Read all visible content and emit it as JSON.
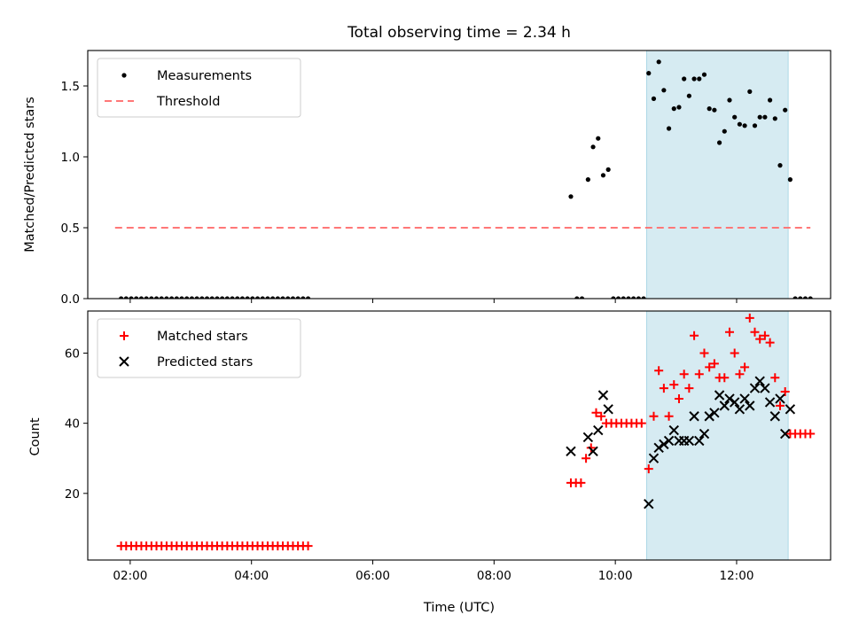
{
  "colors": {
    "measurement": "#000000",
    "threshold": "#ff7777",
    "matched": "#ff0000",
    "predicted": "#000000",
    "span": "#add8e6"
  },
  "chart_data": [
    {
      "type": "scatter",
      "title": "Total observing time = 2.34 h",
      "xlabel": "",
      "ylabel": "Matched/Predicted stars",
      "xlim": [
        "01:18",
        "13:33"
      ],
      "ylim": [
        0,
        1.75
      ],
      "yticks": [
        0.0,
        0.5,
        1.0,
        1.5
      ],
      "ytick_labels": [
        "0.0",
        "0.5",
        "1.0",
        "1.5"
      ],
      "xticks": [
        "02:00",
        "04:00",
        "06:00",
        "08:00",
        "10:00",
        "12:00"
      ],
      "highlight_span": [
        "10:31",
        "12:51"
      ],
      "legend_position": "upper-left",
      "series": [
        {
          "name": "Measurements",
          "kind": "points",
          "color": "#000000",
          "points": [
            [
              "01:51",
              0
            ],
            [
              "01:56",
              0
            ],
            [
              "02:01",
              0
            ],
            [
              "02:06",
              0
            ],
            [
              "02:11",
              0
            ],
            [
              "02:16",
              0
            ],
            [
              "02:21",
              0
            ],
            [
              "02:26",
              0
            ],
            [
              "02:31",
              0
            ],
            [
              "02:36",
              0
            ],
            [
              "02:41",
              0
            ],
            [
              "02:46",
              0
            ],
            [
              "02:51",
              0
            ],
            [
              "02:56",
              0
            ],
            [
              "03:01",
              0
            ],
            [
              "03:06",
              0
            ],
            [
              "03:11",
              0
            ],
            [
              "03:16",
              0
            ],
            [
              "03:21",
              0
            ],
            [
              "03:26",
              0
            ],
            [
              "03:31",
              0
            ],
            [
              "03:36",
              0
            ],
            [
              "03:41",
              0
            ],
            [
              "03:46",
              0
            ],
            [
              "03:51",
              0
            ],
            [
              "03:56",
              0
            ],
            [
              "04:01",
              0
            ],
            [
              "04:06",
              0
            ],
            [
              "04:11",
              0
            ],
            [
              "04:16",
              0
            ],
            [
              "04:21",
              0
            ],
            [
              "04:26",
              0
            ],
            [
              "04:31",
              0
            ],
            [
              "04:36",
              0
            ],
            [
              "04:41",
              0
            ],
            [
              "04:46",
              0
            ],
            [
              "04:51",
              0
            ],
            [
              "04:56",
              0
            ],
            [
              "09:16",
              0.72
            ],
            [
              "09:22",
              0
            ],
            [
              "09:27",
              0
            ],
            [
              "09:33",
              0.84
            ],
            [
              "09:38",
              1.07
            ],
            [
              "09:43",
              1.13
            ],
            [
              "09:48",
              0.87
            ],
            [
              "09:53",
              0.91
            ],
            [
              "09:58",
              0
            ],
            [
              "10:03",
              0
            ],
            [
              "10:08",
              0
            ],
            [
              "10:13",
              0
            ],
            [
              "10:18",
              0
            ],
            [
              "10:23",
              0
            ],
            [
              "10:28",
              0
            ],
            [
              "10:33",
              1.59
            ],
            [
              "10:38",
              1.41
            ],
            [
              "10:43",
              1.67
            ],
            [
              "10:48",
              1.47
            ],
            [
              "10:53",
              1.2
            ],
            [
              "10:58",
              1.34
            ],
            [
              "11:03",
              1.35
            ],
            [
              "11:08",
              1.55
            ],
            [
              "11:13",
              1.43
            ],
            [
              "11:18",
              1.55
            ],
            [
              "11:23",
              1.55
            ],
            [
              "11:28",
              1.58
            ],
            [
              "11:33",
              1.34
            ],
            [
              "11:38",
              1.33
            ],
            [
              "11:43",
              1.1
            ],
            [
              "11:48",
              1.18
            ],
            [
              "11:53",
              1.4
            ],
            [
              "11:58",
              1.28
            ],
            [
              "12:03",
              1.23
            ],
            [
              "12:08",
              1.22
            ],
            [
              "12:13",
              1.46
            ],
            [
              "12:18",
              1.22
            ],
            [
              "12:23",
              1.28
            ],
            [
              "12:28",
              1.28
            ],
            [
              "12:33",
              1.4
            ],
            [
              "12:38",
              1.27
            ],
            [
              "12:43",
              0.94
            ],
            [
              "12:48",
              1.33
            ],
            [
              "12:53",
              0.84
            ],
            [
              "12:58",
              0
            ],
            [
              "13:03",
              0
            ],
            [
              "13:08",
              0
            ],
            [
              "13:13",
              0
            ]
          ]
        },
        {
          "name": "Threshold",
          "kind": "dashed-line",
          "color": "#ff7777",
          "x": [
            "01:45",
            "13:13"
          ],
          "y": [
            0.5,
            0.5
          ]
        }
      ]
    },
    {
      "type": "scatter",
      "title": "",
      "xlabel": "Time (UTC)",
      "ylabel": "Count",
      "xlim": [
        "01:18",
        "13:33"
      ],
      "ylim": [
        1,
        72
      ],
      "yticks": [
        20,
        40,
        60
      ],
      "ytick_labels": [
        "20",
        "40",
        "60"
      ],
      "xticks": [
        "02:00",
        "04:00",
        "06:00",
        "08:00",
        "10:00",
        "12:00"
      ],
      "xtick_labels": [
        "02:00",
        "04:00",
        "06:00",
        "08:00",
        "10:00",
        "12:00"
      ],
      "highlight_span": [
        "10:31",
        "12:51"
      ],
      "legend_position": "upper-left",
      "series": [
        {
          "name": "Matched stars",
          "marker": "plus",
          "color": "#ff0000",
          "points": [
            [
              "01:51",
              5
            ],
            [
              "01:56",
              5
            ],
            [
              "02:01",
              5
            ],
            [
              "02:06",
              5
            ],
            [
              "02:11",
              5
            ],
            [
              "02:16",
              5
            ],
            [
              "02:21",
              5
            ],
            [
              "02:26",
              5
            ],
            [
              "02:31",
              5
            ],
            [
              "02:36",
              5
            ],
            [
              "02:41",
              5
            ],
            [
              "02:46",
              5
            ],
            [
              "02:51",
              5
            ],
            [
              "02:56",
              5
            ],
            [
              "03:01",
              5
            ],
            [
              "03:06",
              5
            ],
            [
              "03:11",
              5
            ],
            [
              "03:16",
              5
            ],
            [
              "03:21",
              5
            ],
            [
              "03:26",
              5
            ],
            [
              "03:31",
              5
            ],
            [
              "03:36",
              5
            ],
            [
              "03:41",
              5
            ],
            [
              "03:46",
              5
            ],
            [
              "03:51",
              5
            ],
            [
              "03:56",
              5
            ],
            [
              "04:01",
              5
            ],
            [
              "04:06",
              5
            ],
            [
              "04:11",
              5
            ],
            [
              "04:16",
              5
            ],
            [
              "04:21",
              5
            ],
            [
              "04:26",
              5
            ],
            [
              "04:31",
              5
            ],
            [
              "04:36",
              5
            ],
            [
              "04:41",
              5
            ],
            [
              "04:46",
              5
            ],
            [
              "04:51",
              5
            ],
            [
              "04:56",
              5
            ],
            [
              "09:16",
              23
            ],
            [
              "09:21",
              23
            ],
            [
              "09:26",
              23
            ],
            [
              "09:31",
              30
            ],
            [
              "09:36",
              33
            ],
            [
              "09:41",
              43
            ],
            [
              "09:46",
              42
            ],
            [
              "09:51",
              40
            ],
            [
              "09:56",
              40
            ],
            [
              "10:01",
              40
            ],
            [
              "10:06",
              40
            ],
            [
              "10:11",
              40
            ],
            [
              "10:16",
              40
            ],
            [
              "10:21",
              40
            ],
            [
              "10:26",
              40
            ],
            [
              "10:33",
              27
            ],
            [
              "10:38",
              42
            ],
            [
              "10:43",
              55
            ],
            [
              "10:48",
              50
            ],
            [
              "10:53",
              42
            ],
            [
              "10:58",
              51
            ],
            [
              "11:03",
              47
            ],
            [
              "11:08",
              54
            ],
            [
              "11:13",
              50
            ],
            [
              "11:18",
              65
            ],
            [
              "11:23",
              54
            ],
            [
              "11:28",
              60
            ],
            [
              "11:33",
              56
            ],
            [
              "11:38",
              57
            ],
            [
              "11:43",
              53
            ],
            [
              "11:48",
              53
            ],
            [
              "11:53",
              66
            ],
            [
              "11:58",
              60
            ],
            [
              "12:03",
              54
            ],
            [
              "12:08",
              56
            ],
            [
              "12:13",
              70
            ],
            [
              "12:18",
              66
            ],
            [
              "12:23",
              64
            ],
            [
              "12:28",
              65
            ],
            [
              "12:33",
              63
            ],
            [
              "12:38",
              53
            ],
            [
              "12:43",
              45
            ],
            [
              "12:48",
              49
            ],
            [
              "12:53",
              37
            ],
            [
              "12:58",
              37
            ],
            [
              "13:03",
              37
            ],
            [
              "13:08",
              37
            ],
            [
              "13:13",
              37
            ]
          ]
        },
        {
          "name": "Predicted stars",
          "marker": "x",
          "color": "#000000",
          "points": [
            [
              "09:16",
              32
            ],
            [
              "09:33",
              36
            ],
            [
              "09:38",
              32
            ],
            [
              "09:43",
              38
            ],
            [
              "09:48",
              48
            ],
            [
              "09:53",
              44
            ],
            [
              "10:33",
              17
            ],
            [
              "10:38",
              30
            ],
            [
              "10:43",
              33
            ],
            [
              "10:48",
              34
            ],
            [
              "10:53",
              35
            ],
            [
              "10:58",
              38
            ],
            [
              "11:03",
              35
            ],
            [
              "11:08",
              35
            ],
            [
              "11:13",
              35
            ],
            [
              "11:18",
              42
            ],
            [
              "11:23",
              35
            ],
            [
              "11:28",
              37
            ],
            [
              "11:33",
              42
            ],
            [
              "11:38",
              43
            ],
            [
              "11:43",
              48
            ],
            [
              "11:48",
              45
            ],
            [
              "11:53",
              47
            ],
            [
              "11:58",
              46
            ],
            [
              "12:03",
              44
            ],
            [
              "12:08",
              47
            ],
            [
              "12:13",
              45
            ],
            [
              "12:18",
              50
            ],
            [
              "12:23",
              52
            ],
            [
              "12:28",
              50
            ],
            [
              "12:33",
              46
            ],
            [
              "12:38",
              42
            ],
            [
              "12:43",
              47
            ],
            [
              "12:48",
              37
            ],
            [
              "12:53",
              44
            ]
          ]
        }
      ]
    }
  ]
}
